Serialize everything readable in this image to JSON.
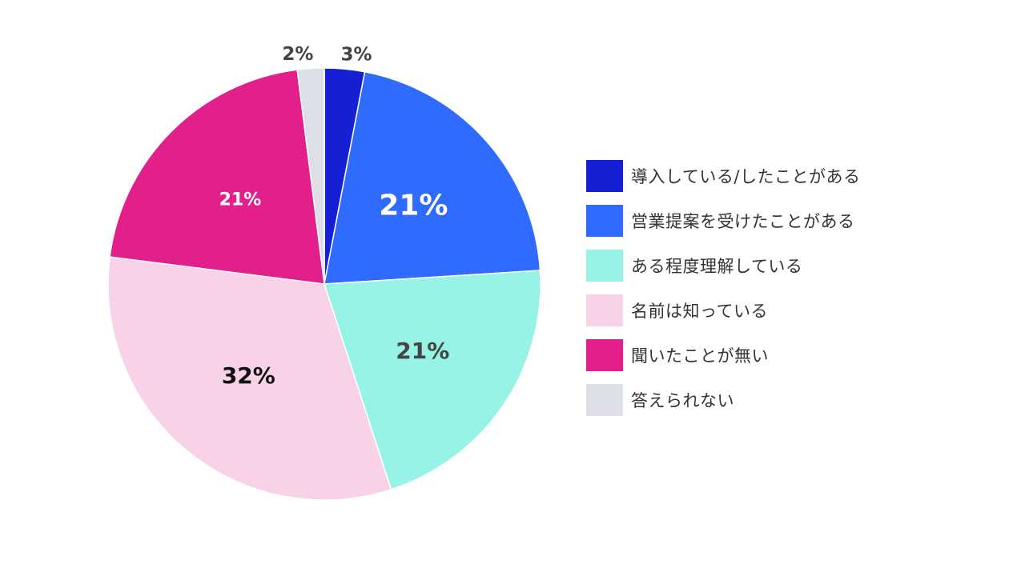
{
  "chart_data": {
    "type": "pie",
    "categories": [
      "導入している/したことがある",
      "営業提案を受けたことがある",
      "ある程度理解している",
      "名前は知っている",
      "聞いたことが無い",
      "答えられない"
    ],
    "values": [
      3,
      21,
      21,
      32,
      21,
      2
    ],
    "labels": [
      "3%",
      "21%",
      "21%",
      "32%",
      "21%",
      "2%"
    ],
    "colors": [
      "#1520D4",
      "#2F6BFF",
      "#97F3E5",
      "#F8D2E7",
      "#E31F8C",
      "#DCDFE6"
    ],
    "label_colors": [
      "#444444",
      "#FFFFFF",
      "#444444",
      "#111111",
      "#FFFFFF",
      "#444444"
    ],
    "start_angle_deg": 0,
    "direction": "clockwise",
    "legend_position": "right"
  }
}
